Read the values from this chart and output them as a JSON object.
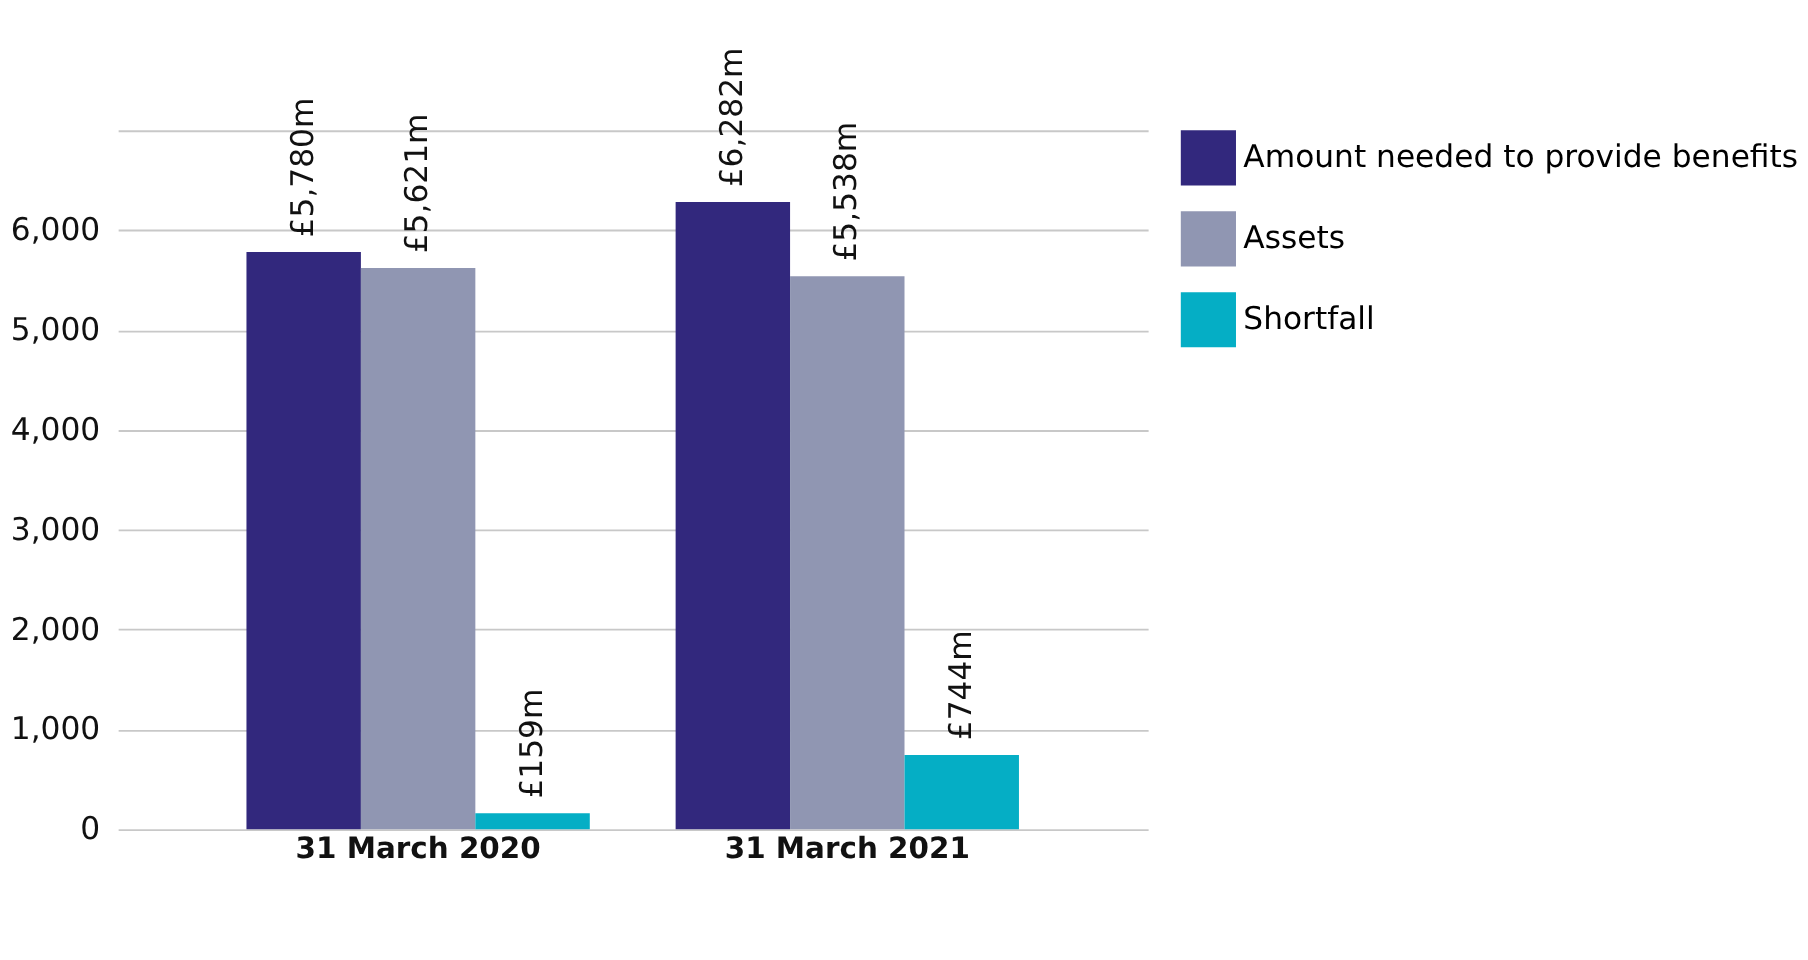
{
  "chart_data": {
    "type": "bar",
    "categories": [
      "31 March 2020",
      "31 March 2021"
    ],
    "series": [
      {
        "name": "Amount needed to provide benefits",
        "color": "#32287d",
        "values": [
          5780,
          6282
        ],
        "value_labels": [
          "£5,780m",
          "£6,282m"
        ]
      },
      {
        "name": "Assets",
        "color": "#9096b2",
        "values": [
          5621,
          5538
        ],
        "value_labels": [
          "£5,621m",
          "£5,538m"
        ]
      },
      {
        "name": "Shortfall",
        "color": "#05aec5",
        "values": [
          159,
          744
        ],
        "value_labels": [
          "£159m",
          "£744m"
        ]
      }
    ],
    "ylim": [
      0,
      7000
    ],
    "yticks": [
      0,
      {
        "value": 1000,
        "label": "1,000"
      },
      {
        "value": 2000,
        "label": "2,000"
      },
      {
        "value": 3000,
        "label": "3,000"
      },
      {
        "value": 4000,
        "label": "4,000"
      },
      {
        "value": 5000,
        "label": "5,000"
      },
      {
        "value": 6000,
        "label": "6,000"
      },
      {
        "value": 7000,
        "label": null
      }
    ],
    "grid": "y",
    "legend": "right"
  }
}
